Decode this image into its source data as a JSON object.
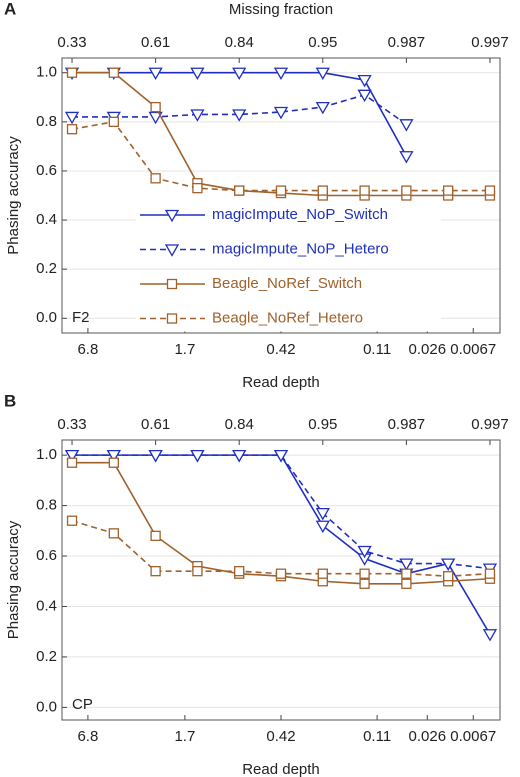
{
  "chart_data": [
    {
      "type": "line",
      "panel_label": "A",
      "x_label_top": "Missing fraction",
      "x_label": "Read depth",
      "y_label": "Phasing accuracy",
      "annotation": "F2",
      "x": [
        0,
        1,
        2,
        3,
        4,
        5,
        6,
        7,
        8,
        9,
        10
      ],
      "xlim": [
        -0.24,
        10.24
      ],
      "xticks_top": [
        {
          "value": 0,
          "label": "0.33"
        },
        {
          "value": 2,
          "label": "0.61"
        },
        {
          "value": 4,
          "label": "0.84"
        },
        {
          "value": 6,
          "label": "0.95"
        },
        {
          "value": 8,
          "label": "0.987"
        },
        {
          "value": 10,
          "label": "0.997"
        }
      ],
      "xticks": [
        {
          "value": 0.38,
          "label": "6.8"
        },
        {
          "value": 2.7,
          "label": "1.7"
        },
        {
          "value": 5.0,
          "label": "0.42"
        },
        {
          "value": 7.3,
          "label": "0.11"
        },
        {
          "value": 8.5,
          "label": "0.026"
        },
        {
          "value": 9.6,
          "label": "0.0067"
        }
      ],
      "ylim": [
        -0.06,
        1.06
      ],
      "yticks": [
        {
          "value": 0,
          "label": "0.0"
        },
        0.2,
        0.4,
        0.6,
        0.8,
        {
          "value": 1,
          "label": "1.0"
        }
      ],
      "grid": true,
      "legend": true,
      "series": [
        {
          "name": "magicImpute_NoP_Switch",
          "color": "#1f2fbf",
          "marker": "triangle",
          "dash": false,
          "values": [
            1.0,
            1.0,
            1.0,
            1.0,
            1.0,
            1.0,
            1.0,
            0.97,
            0.66,
            null,
            null
          ]
        },
        {
          "name": "magicImpute_NoP_Hetero",
          "color": "#1f2fbf",
          "marker": "triangle",
          "dash": true,
          "values": [
            0.82,
            0.82,
            0.82,
            0.83,
            0.83,
            0.84,
            0.86,
            0.91,
            0.79,
            null,
            null
          ]
        },
        {
          "name": "Beagle_NoRef_Switch",
          "color": "#a0612b",
          "marker": "square",
          "dash": false,
          "values": [
            1.0,
            1.0,
            0.86,
            0.55,
            0.52,
            0.51,
            0.5,
            0.5,
            0.5,
            0.5,
            0.5
          ]
        },
        {
          "name": "Beagle_NoRef_Hetero",
          "color": "#a0612b",
          "marker": "square",
          "dash": true,
          "values": [
            0.77,
            0.8,
            0.57,
            0.53,
            0.52,
            0.52,
            0.52,
            0.52,
            0.52,
            0.52,
            0.52
          ]
        }
      ]
    },
    {
      "type": "line",
      "panel_label": "B",
      "x_label": "Read depth",
      "y_label": "Phasing accuracy",
      "annotation": "CP",
      "x": [
        0,
        1,
        2,
        3,
        4,
        5,
        6,
        7,
        8,
        9,
        10
      ],
      "xlim": [
        -0.24,
        10.24
      ],
      "xticks_top": [
        {
          "value": 0,
          "label": "0.33"
        },
        {
          "value": 2,
          "label": "0.61"
        },
        {
          "value": 4,
          "label": "0.84"
        },
        {
          "value": 6,
          "label": "0.95"
        },
        {
          "value": 8,
          "label": "0.987"
        },
        {
          "value": 10,
          "label": "0.997"
        }
      ],
      "xticks": [
        {
          "value": 0.38,
          "label": "6.8"
        },
        {
          "value": 2.7,
          "label": "1.7"
        },
        {
          "value": 5.0,
          "label": "0.42"
        },
        {
          "value": 7.3,
          "label": "0.11"
        },
        {
          "value": 8.5,
          "label": "0.026"
        },
        {
          "value": 9.6,
          "label": "0.0067"
        }
      ],
      "ylim": [
        -0.05,
        1.06
      ],
      "yticks": [
        {
          "value": 0,
          "label": "0.0"
        },
        0.2,
        0.4,
        0.6,
        0.8,
        {
          "value": 1,
          "label": "1.0"
        }
      ],
      "grid": true,
      "legend": false,
      "series": [
        {
          "color": "#1f2fbf",
          "marker": "triangle",
          "dash": false,
          "values": [
            1.0,
            1.0,
            1.0,
            1.0,
            1.0,
            1.0,
            0.72,
            0.59,
            0.53,
            0.57,
            0.29
          ]
        },
        {
          "color": "#1f2fbf",
          "marker": "triangle",
          "dash": true,
          "values": [
            1.0,
            1.0,
            1.0,
            1.0,
            1.0,
            1.0,
            0.77,
            0.62,
            0.57,
            0.57,
            0.55
          ]
        },
        {
          "color": "#a0612b",
          "marker": "square",
          "dash": false,
          "values": [
            0.97,
            0.97,
            0.68,
            0.56,
            0.53,
            0.52,
            0.5,
            0.49,
            0.49,
            0.5,
            0.51
          ]
        },
        {
          "color": "#a0612b",
          "marker": "square",
          "dash": true,
          "values": [
            0.74,
            0.69,
            0.54,
            0.54,
            0.54,
            0.53,
            0.53,
            0.53,
            0.53,
            0.52,
            0.53
          ]
        }
      ]
    }
  ]
}
